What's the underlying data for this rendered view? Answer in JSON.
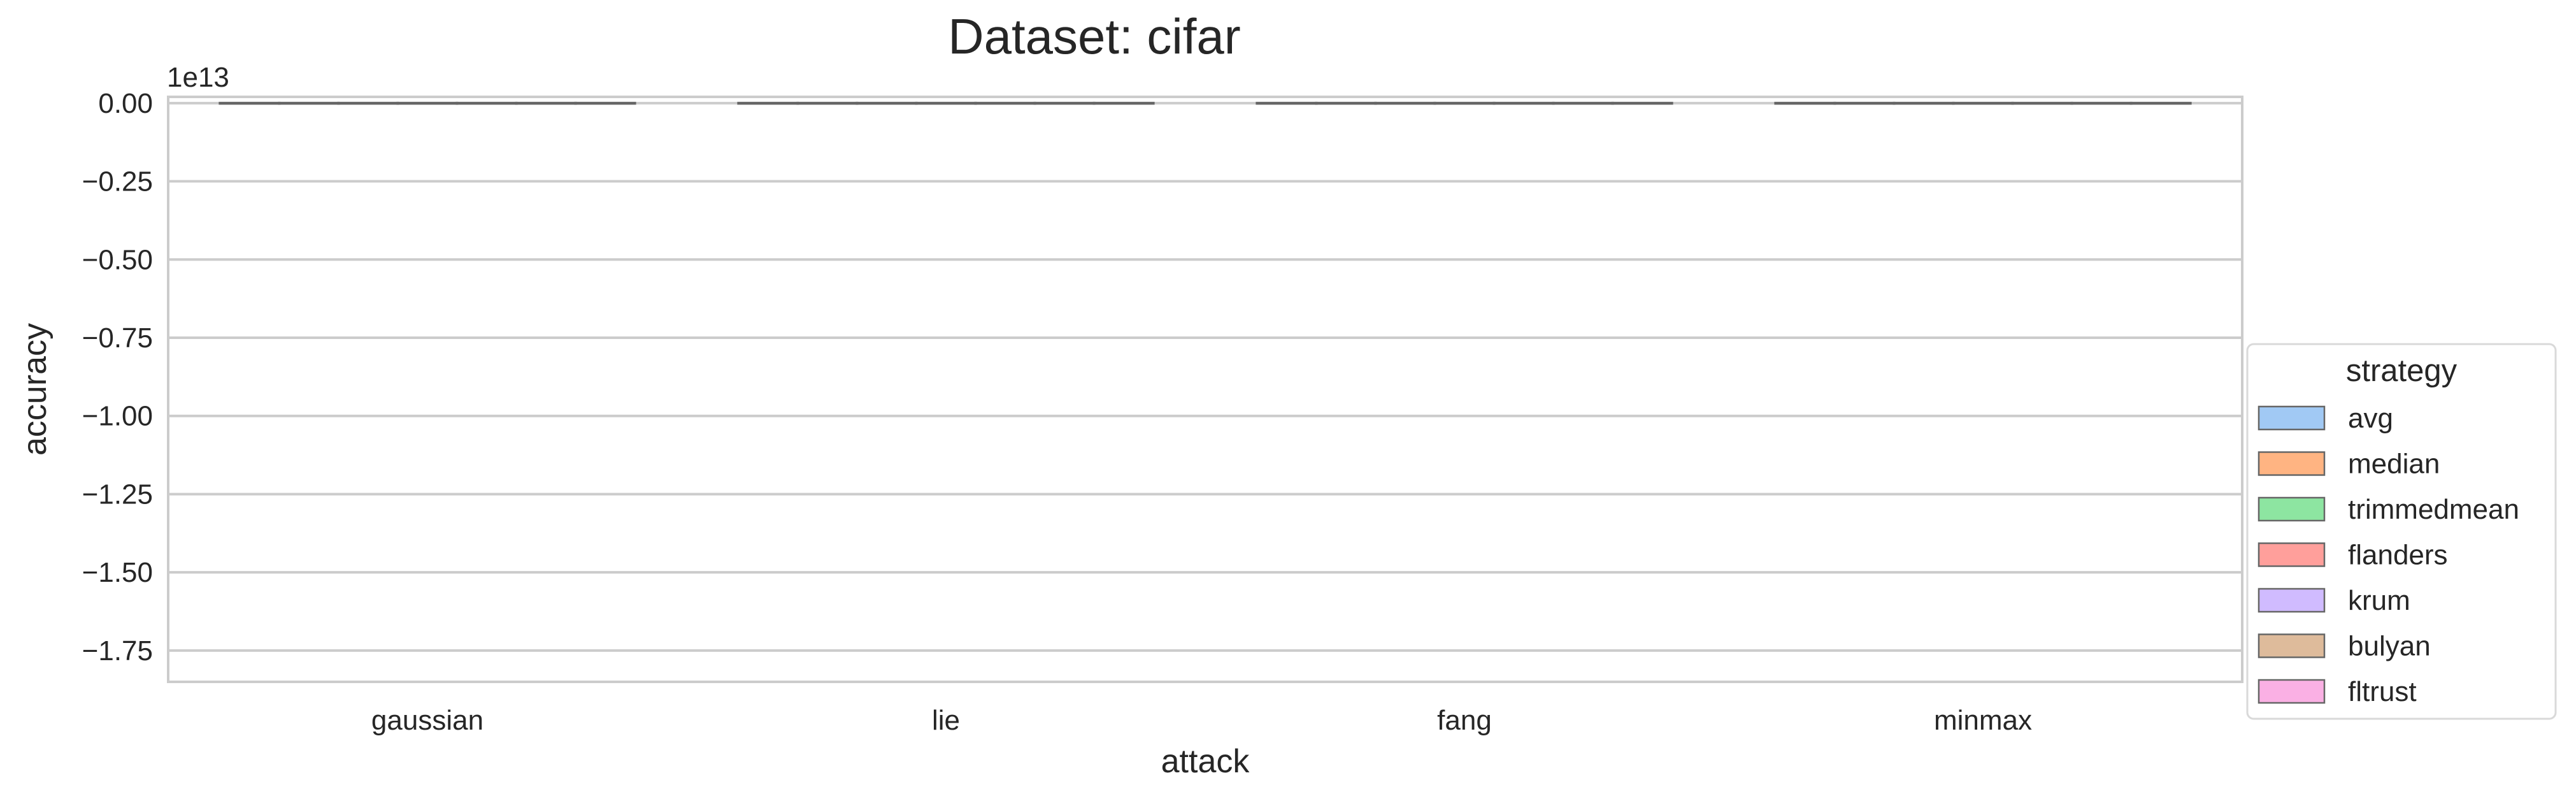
{
  "chart_data": {
    "type": "bar",
    "title": "Dataset: cifar",
    "xlabel": "attack",
    "ylabel": "accuracy",
    "offset_label": "1e13",
    "categories": [
      "gaussian",
      "lie",
      "fang",
      "minmax"
    ],
    "y_ticks": [
      "0.00",
      "−0.25",
      "−0.50",
      "−0.75",
      "−1.00",
      "−1.25",
      "−1.50",
      "−1.75"
    ],
    "ylim": [
      -1.85,
      0.02
    ],
    "grid": true,
    "legend": {
      "title": "strategy",
      "placement": "right"
    },
    "series": [
      {
        "name": "avg",
        "color": "#a1c9f4",
        "values": [
          0,
          0,
          0,
          0
        ]
      },
      {
        "name": "median",
        "color": "#ffb482",
        "values": [
          0,
          0,
          0,
          0
        ]
      },
      {
        "name": "trimmedmean",
        "color": "#8de5a1",
        "values": [
          0,
          0,
          0,
          0
        ]
      },
      {
        "name": "flanders",
        "color": "#ff9f9b",
        "values": [
          0,
          0,
          0,
          0
        ]
      },
      {
        "name": "krum",
        "color": "#d0bbff",
        "values": [
          0,
          0,
          0,
          0
        ]
      },
      {
        "name": "bulyan",
        "color": "#debb9b",
        "values": [
          0,
          0,
          0,
          0
        ]
      },
      {
        "name": "fltrust",
        "color": "#fab0e4",
        "values": [
          0,
          0,
          0,
          0
        ]
      }
    ]
  }
}
